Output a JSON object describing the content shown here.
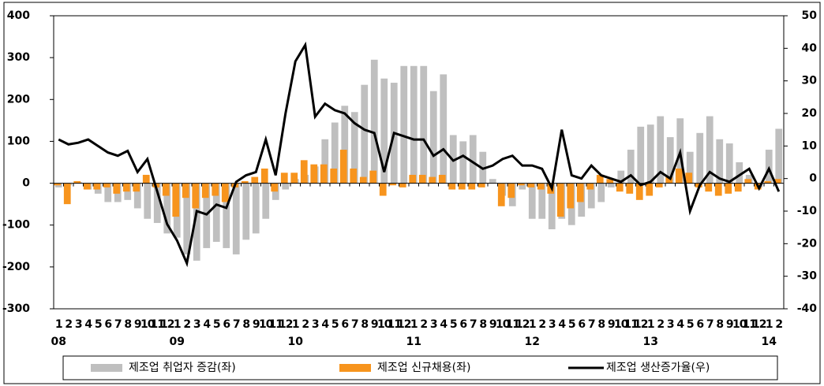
{
  "chart_data": {
    "type": "bar-line",
    "categories": [
      "1",
      "2",
      "3",
      "4",
      "5",
      "6",
      "7",
      "8",
      "9",
      "10",
      "11",
      "12",
      "1",
      "2",
      "3",
      "4",
      "5",
      "6",
      "7",
      "8",
      "9",
      "10",
      "11",
      "12",
      "1",
      "2",
      "3",
      "4",
      "5",
      "6",
      "7",
      "8",
      "9",
      "10",
      "11",
      "12",
      "1",
      "2",
      "3",
      "4",
      "5",
      "6",
      "7",
      "8",
      "9",
      "10",
      "11",
      "12",
      "1",
      "2",
      "3",
      "4",
      "5",
      "6",
      "7",
      "8",
      "9",
      "10",
      "11",
      "12",
      "1",
      "2",
      "3",
      "4",
      "5",
      "6",
      "7",
      "8",
      "9",
      "10",
      "11",
      "12",
      "1",
      "2"
    ],
    "year_labels": [
      "08",
      "09",
      "10",
      "11",
      "12",
      "13",
      "14"
    ],
    "ylim": [
      -300,
      400
    ],
    "yticks": [
      -300,
      -200,
      -100,
      0,
      100,
      200,
      300,
      400
    ],
    "y2lim": [
      -40,
      50
    ],
    "y2ticks": [
      -40,
      -30,
      -20,
      -10,
      0,
      10,
      20,
      30,
      40,
      50
    ],
    "series": [
      {
        "name": "제조업 취업자 증감(좌)",
        "kind": "bar",
        "color": "#bfbfbf",
        "values": [
          -10,
          -5,
          3,
          -15,
          -25,
          -45,
          -45,
          -40,
          -60,
          -85,
          -95,
          -120,
          -130,
          -170,
          -185,
          -155,
          -140,
          -155,
          -170,
          -135,
          -120,
          -85,
          -40,
          -15,
          10,
          20,
          40,
          105,
          145,
          185,
          170,
          235,
          295,
          250,
          240,
          280,
          280,
          280,
          220,
          260,
          115,
          100,
          115,
          75,
          10,
          -30,
          -55,
          -15,
          -85,
          -85,
          -110,
          -85,
          -100,
          -80,
          -60,
          -45,
          -10,
          30,
          80,
          135,
          140,
          160,
          110,
          155,
          75,
          120,
          160,
          105,
          95,
          50,
          20,
          -10,
          80,
          130
        ]
      },
      {
        "name": "제조업 신규채용(좌)",
        "kind": "bar",
        "color": "#f7941d",
        "values": [
          -5,
          -50,
          5,
          -15,
          -15,
          -10,
          -25,
          -20,
          -20,
          20,
          -10,
          -30,
          -80,
          -35,
          -60,
          -35,
          -30,
          -45,
          -10,
          5,
          15,
          35,
          -20,
          25,
          25,
          55,
          45,
          45,
          35,
          80,
          35,
          15,
          30,
          -30,
          -5,
          -10,
          20,
          20,
          15,
          20,
          -15,
          -15,
          -15,
          -10,
          0,
          -55,
          -35,
          -5,
          -10,
          -15,
          -25,
          -80,
          -60,
          -45,
          -15,
          20,
          10,
          -20,
          -25,
          -40,
          -30,
          -10,
          15,
          35,
          25,
          -10,
          -20,
          -30,
          -25,
          -20,
          10,
          -15,
          5,
          10
        ]
      },
      {
        "name": "제조업 생산증가율(우)",
        "kind": "line",
        "axis": "y2",
        "color": "#000000",
        "values": [
          12,
          10.5,
          11,
          12,
          10,
          8,
          7,
          8.5,
          2,
          6,
          -4,
          -14,
          -19,
          -26,
          -10,
          -11,
          -8,
          -9,
          -1,
          1,
          2,
          12,
          1,
          20,
          36,
          41,
          19,
          23,
          21,
          20,
          17,
          15,
          14,
          2,
          14,
          13,
          12,
          12,
          7,
          9,
          5.5,
          7,
          5,
          3,
          4,
          6,
          7,
          4,
          4,
          3,
          -3,
          15,
          1,
          0,
          4,
          1,
          0,
          -1,
          1,
          -2,
          -1,
          2,
          0,
          8,
          -10,
          -2,
          2,
          0,
          -1,
          1,
          3,
          -3,
          3,
          -4
        ]
      }
    ]
  }
}
